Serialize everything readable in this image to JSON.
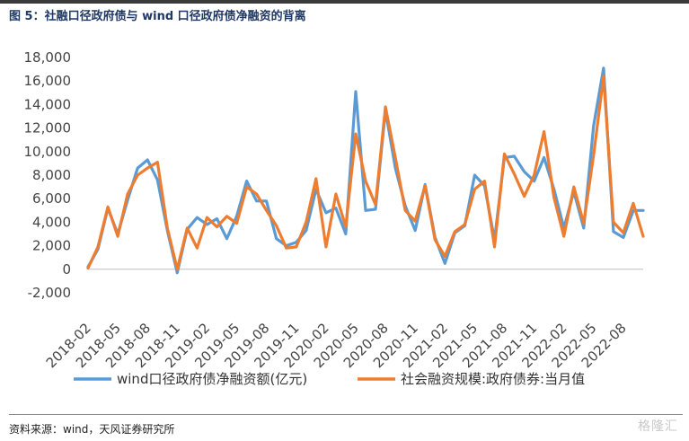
{
  "header": {
    "title": "图 5：社融口径政府债与 wind 口径政府债净融资的背离"
  },
  "footer": {
    "source": "资料来源：wind，天风证券研究所",
    "watermark": "格隆汇"
  },
  "chart_data": {
    "type": "line",
    "title": "图 5：社融口径政府债与 wind 口径政府债净融资的背离",
    "xlabel": "",
    "ylabel": "",
    "ylim": [
      -2000,
      18000
    ],
    "yticks": [
      -2000,
      0,
      2000,
      4000,
      6000,
      8000,
      10000,
      12000,
      14000,
      16000,
      18000
    ],
    "ytick_labels": [
      "-2,000",
      "0",
      "2,000",
      "4,000",
      "6,000",
      "8,000",
      "10,000",
      "12,000",
      "14,000",
      "16,000",
      "18,000"
    ],
    "grid": false,
    "legend_position": "bottom",
    "x": [
      "2018-02",
      "2018-03",
      "2018-04",
      "2018-05",
      "2018-06",
      "2018-07",
      "2018-08",
      "2018-09",
      "2018-10",
      "2018-11",
      "2018-12",
      "2019-01",
      "2019-02",
      "2019-03",
      "2019-04",
      "2019-05",
      "2019-06",
      "2019-07",
      "2019-08",
      "2019-09",
      "2019-10",
      "2019-11",
      "2019-12",
      "2020-01",
      "2020-02",
      "2020-03",
      "2020-04",
      "2020-05",
      "2020-06",
      "2020-07",
      "2020-08",
      "2020-09",
      "2020-10",
      "2020-11",
      "2020-12",
      "2021-01",
      "2021-02",
      "2021-03",
      "2021-04",
      "2021-05",
      "2021-06",
      "2021-07",
      "2021-08",
      "2021-09",
      "2021-10",
      "2021-11",
      "2021-12",
      "2022-01",
      "2022-02",
      "2022-03",
      "2022-04",
      "2022-05",
      "2022-06",
      "2022-07",
      "2022-08",
      "2022-09",
      "2022-10"
    ],
    "xtick_labels": [
      "2018-02",
      "2018-05",
      "2018-08",
      "2018-11",
      "2019-02",
      "2019-05",
      "2019-08",
      "2019-11",
      "2020-02",
      "2020-05",
      "2020-08",
      "2020-11",
      "2021-02",
      "2021-05",
      "2021-08",
      "2021-11",
      "2022-02",
      "2022-05",
      "2022-08"
    ],
    "series": [
      {
        "name": "wind口径政府债净融资额(亿元)",
        "color": "#5b9bd5",
        "values": [
          200,
          1700,
          5200,
          3000,
          5900,
          8600,
          9300,
          7600,
          3300,
          -300,
          3400,
          4400,
          3800,
          4300,
          2600,
          4500,
          7500,
          5800,
          5800,
          2600,
          2000,
          2300,
          3300,
          6800,
          4800,
          5200,
          3000,
          15100,
          5000,
          5100,
          13500,
          8600,
          5400,
          3300,
          7200,
          2700,
          500,
          3100,
          3700,
          8000,
          7100,
          2500,
          9500,
          9600,
          8300,
          7500,
          9500,
          6800,
          3500,
          6600,
          3500,
          12200,
          17100,
          3200,
          2700,
          5000,
          5000
        ]
      },
      {
        "name": "社会融资规模:政府债券:当月值",
        "color": "#ed7d31",
        "values": [
          100,
          1900,
          5300,
          2800,
          6400,
          8000,
          8600,
          9100,
          3500,
          0,
          3500,
          1800,
          4400,
          3600,
          4500,
          3900,
          7000,
          6400,
          5000,
          3700,
          1800,
          1900,
          4000,
          7700,
          1900,
          6400,
          3600,
          11500,
          7500,
          5500,
          13800,
          9500,
          5000,
          4100,
          7100,
          2500,
          1100,
          3200,
          3800,
          6800,
          7500,
          1900,
          9800,
          8100,
          6200,
          8000,
          11700,
          6100,
          2800,
          7000,
          3900,
          9700,
          16400,
          4000,
          3100,
          5600,
          2800
        ]
      }
    ]
  }
}
